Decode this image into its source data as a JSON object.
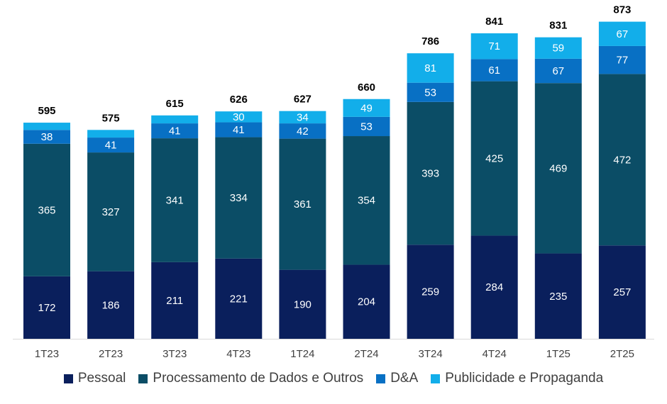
{
  "chart_data": {
    "type": "bar",
    "stacked": true,
    "categories": [
      "1T23",
      "2T23",
      "3T23",
      "4T23",
      "1T24",
      "2T24",
      "3T24",
      "4T24",
      "1T25",
      "2T25"
    ],
    "series": [
      {
        "name": "Pessoal",
        "color": "#0A1F5C",
        "label_color": "#ffffff",
        "values": [
          172,
          186,
          211,
          221,
          190,
          204,
          259,
          284,
          235,
          257
        ]
      },
      {
        "name": "Processamento de Dados e Outros",
        "color": "#0B4D66",
        "label_color": "#ffffff",
        "values": [
          365,
          327,
          341,
          334,
          361,
          354,
          393,
          425,
          469,
          472
        ]
      },
      {
        "name": "D&A",
        "color": "#0870C4",
        "label_color": "#ffffff",
        "values": [
          38,
          41,
          41,
          41,
          42,
          53,
          53,
          61,
          67,
          77
        ]
      },
      {
        "name": "Publicidade e Propaganda",
        "color": "#12AEEA",
        "label_color": "#ffffff",
        "values": [
          20,
          21,
          22,
          30,
          34,
          49,
          81,
          71,
          59,
          67
        ],
        "labels_shown": [
          false,
          false,
          false,
          true,
          true,
          true,
          true,
          true,
          true,
          true
        ]
      }
    ],
    "totals": [
      595,
      575,
      615,
      626,
      627,
      660,
      786,
      841,
      831,
      873
    ],
    "ylim": [
      0,
      1000
    ],
    "grid": false,
    "legend_position": "bottom"
  }
}
